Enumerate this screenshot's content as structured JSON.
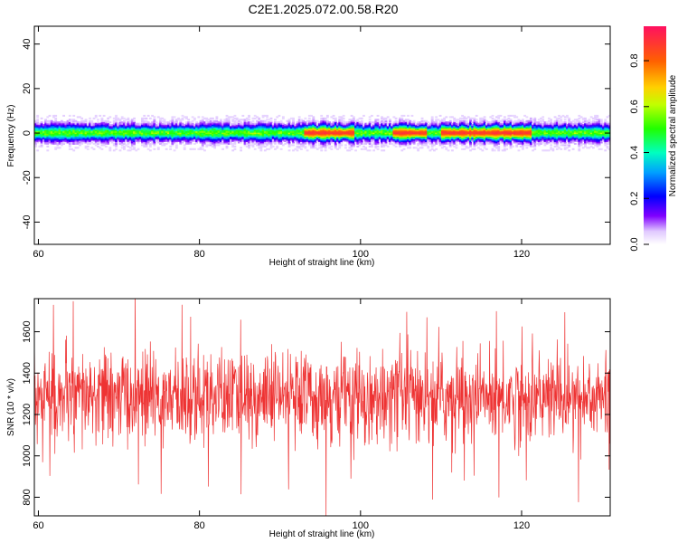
{
  "title": "C2E1.2025.072.00.58.R20",
  "chart_data": [
    {
      "type": "heatmap",
      "xlabel": "Height of straight line (km)",
      "ylabel": "Frequency (Hz)",
      "xlim": [
        59.5,
        131
      ],
      "ylim": [
        -50,
        48
      ],
      "xticks": [
        60,
        80,
        100,
        120
      ],
      "yticks": [
        -40,
        -20,
        0,
        20,
        40
      ],
      "colorbar": {
        "label": "Normalized spectral amplitude",
        "range": [
          0,
          0.95
        ],
        "ticks": [
          0.0,
          0.2,
          0.4,
          0.6,
          0.8
        ]
      },
      "band": {
        "center_hz": 0,
        "halfwidth_hz": 3,
        "peak_regions_km": [
          [
            93,
            99
          ],
          [
            104,
            108
          ],
          [
            110,
            121
          ]
        ],
        "peak_amplitude": 0.85
      }
    },
    {
      "type": "line",
      "xlabel": "Height of straight line (km)",
      "ylabel": "SNR (10 * v/v)",
      "xlim": [
        59.5,
        131
      ],
      "ylim": [
        710,
        1760
      ],
      "xticks": [
        60,
        80,
        100,
        120
      ],
      "yticks": [
        800,
        1000,
        1200,
        1400,
        1600
      ],
      "series": [
        {
          "color": "#ee3333",
          "mean": 1280,
          "std": 110,
          "n_points": 1600
        }
      ]
    }
  ]
}
